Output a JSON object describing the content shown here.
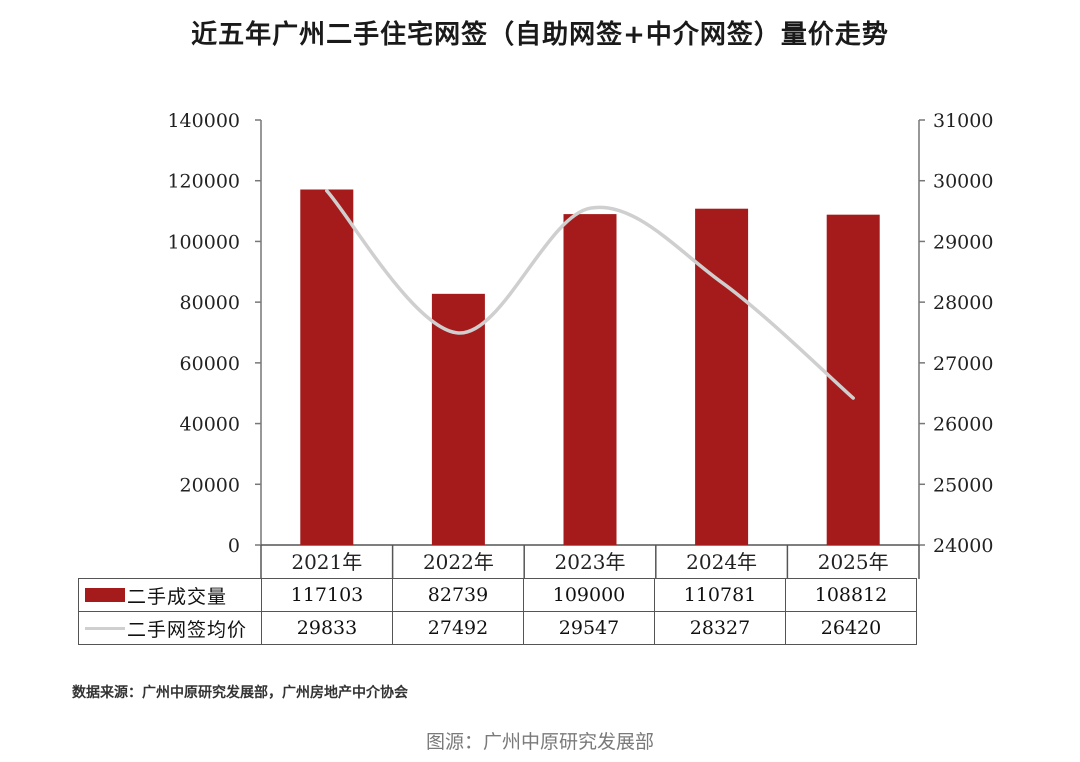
{
  "title": "近五年广州二手住宅网签（自助网签+中介网签）量价走势",
  "chart_data": {
    "type": "bar",
    "categories": [
      "2021年",
      "2022年",
      "2023年",
      "2024年",
      "2025年"
    ],
    "series": [
      {
        "name": "二手成交量",
        "type": "bar",
        "axis": "left",
        "color": "#a51a1a",
        "values": [
          117103,
          82739,
          109000,
          110781,
          108812
        ]
      },
      {
        "name": "二手网签均价",
        "type": "line",
        "axis": "right",
        "color": "#cfcfcf",
        "values": [
          29833,
          27492,
          29547,
          28327,
          26420
        ]
      }
    ],
    "y_left": {
      "lim": [
        0,
        140000
      ],
      "ticks": [
        "0",
        "20000",
        "40000",
        "60000",
        "80000",
        "100000",
        "120000",
        "140000"
      ]
    },
    "y_right": {
      "lim": [
        24000,
        31000
      ],
      "ticks": [
        "24000",
        "25000",
        "26000",
        "27000",
        "28000",
        "29000",
        "30000",
        "31000"
      ]
    },
    "grid": false,
    "legend": "data-table below chart"
  },
  "table": {
    "rows": [
      {
        "label": "二手成交量",
        "values": [
          "117103",
          "82739",
          "109000",
          "110781",
          "108812"
        ]
      },
      {
        "label": "二手网签均价",
        "values": [
          "29833",
          "27492",
          "29547",
          "28327",
          "26420"
        ]
      }
    ]
  },
  "source_note": "数据来源：广州中原研究发展部，广州房地产中介协会",
  "caption": "图源：广州中原研究发展部"
}
